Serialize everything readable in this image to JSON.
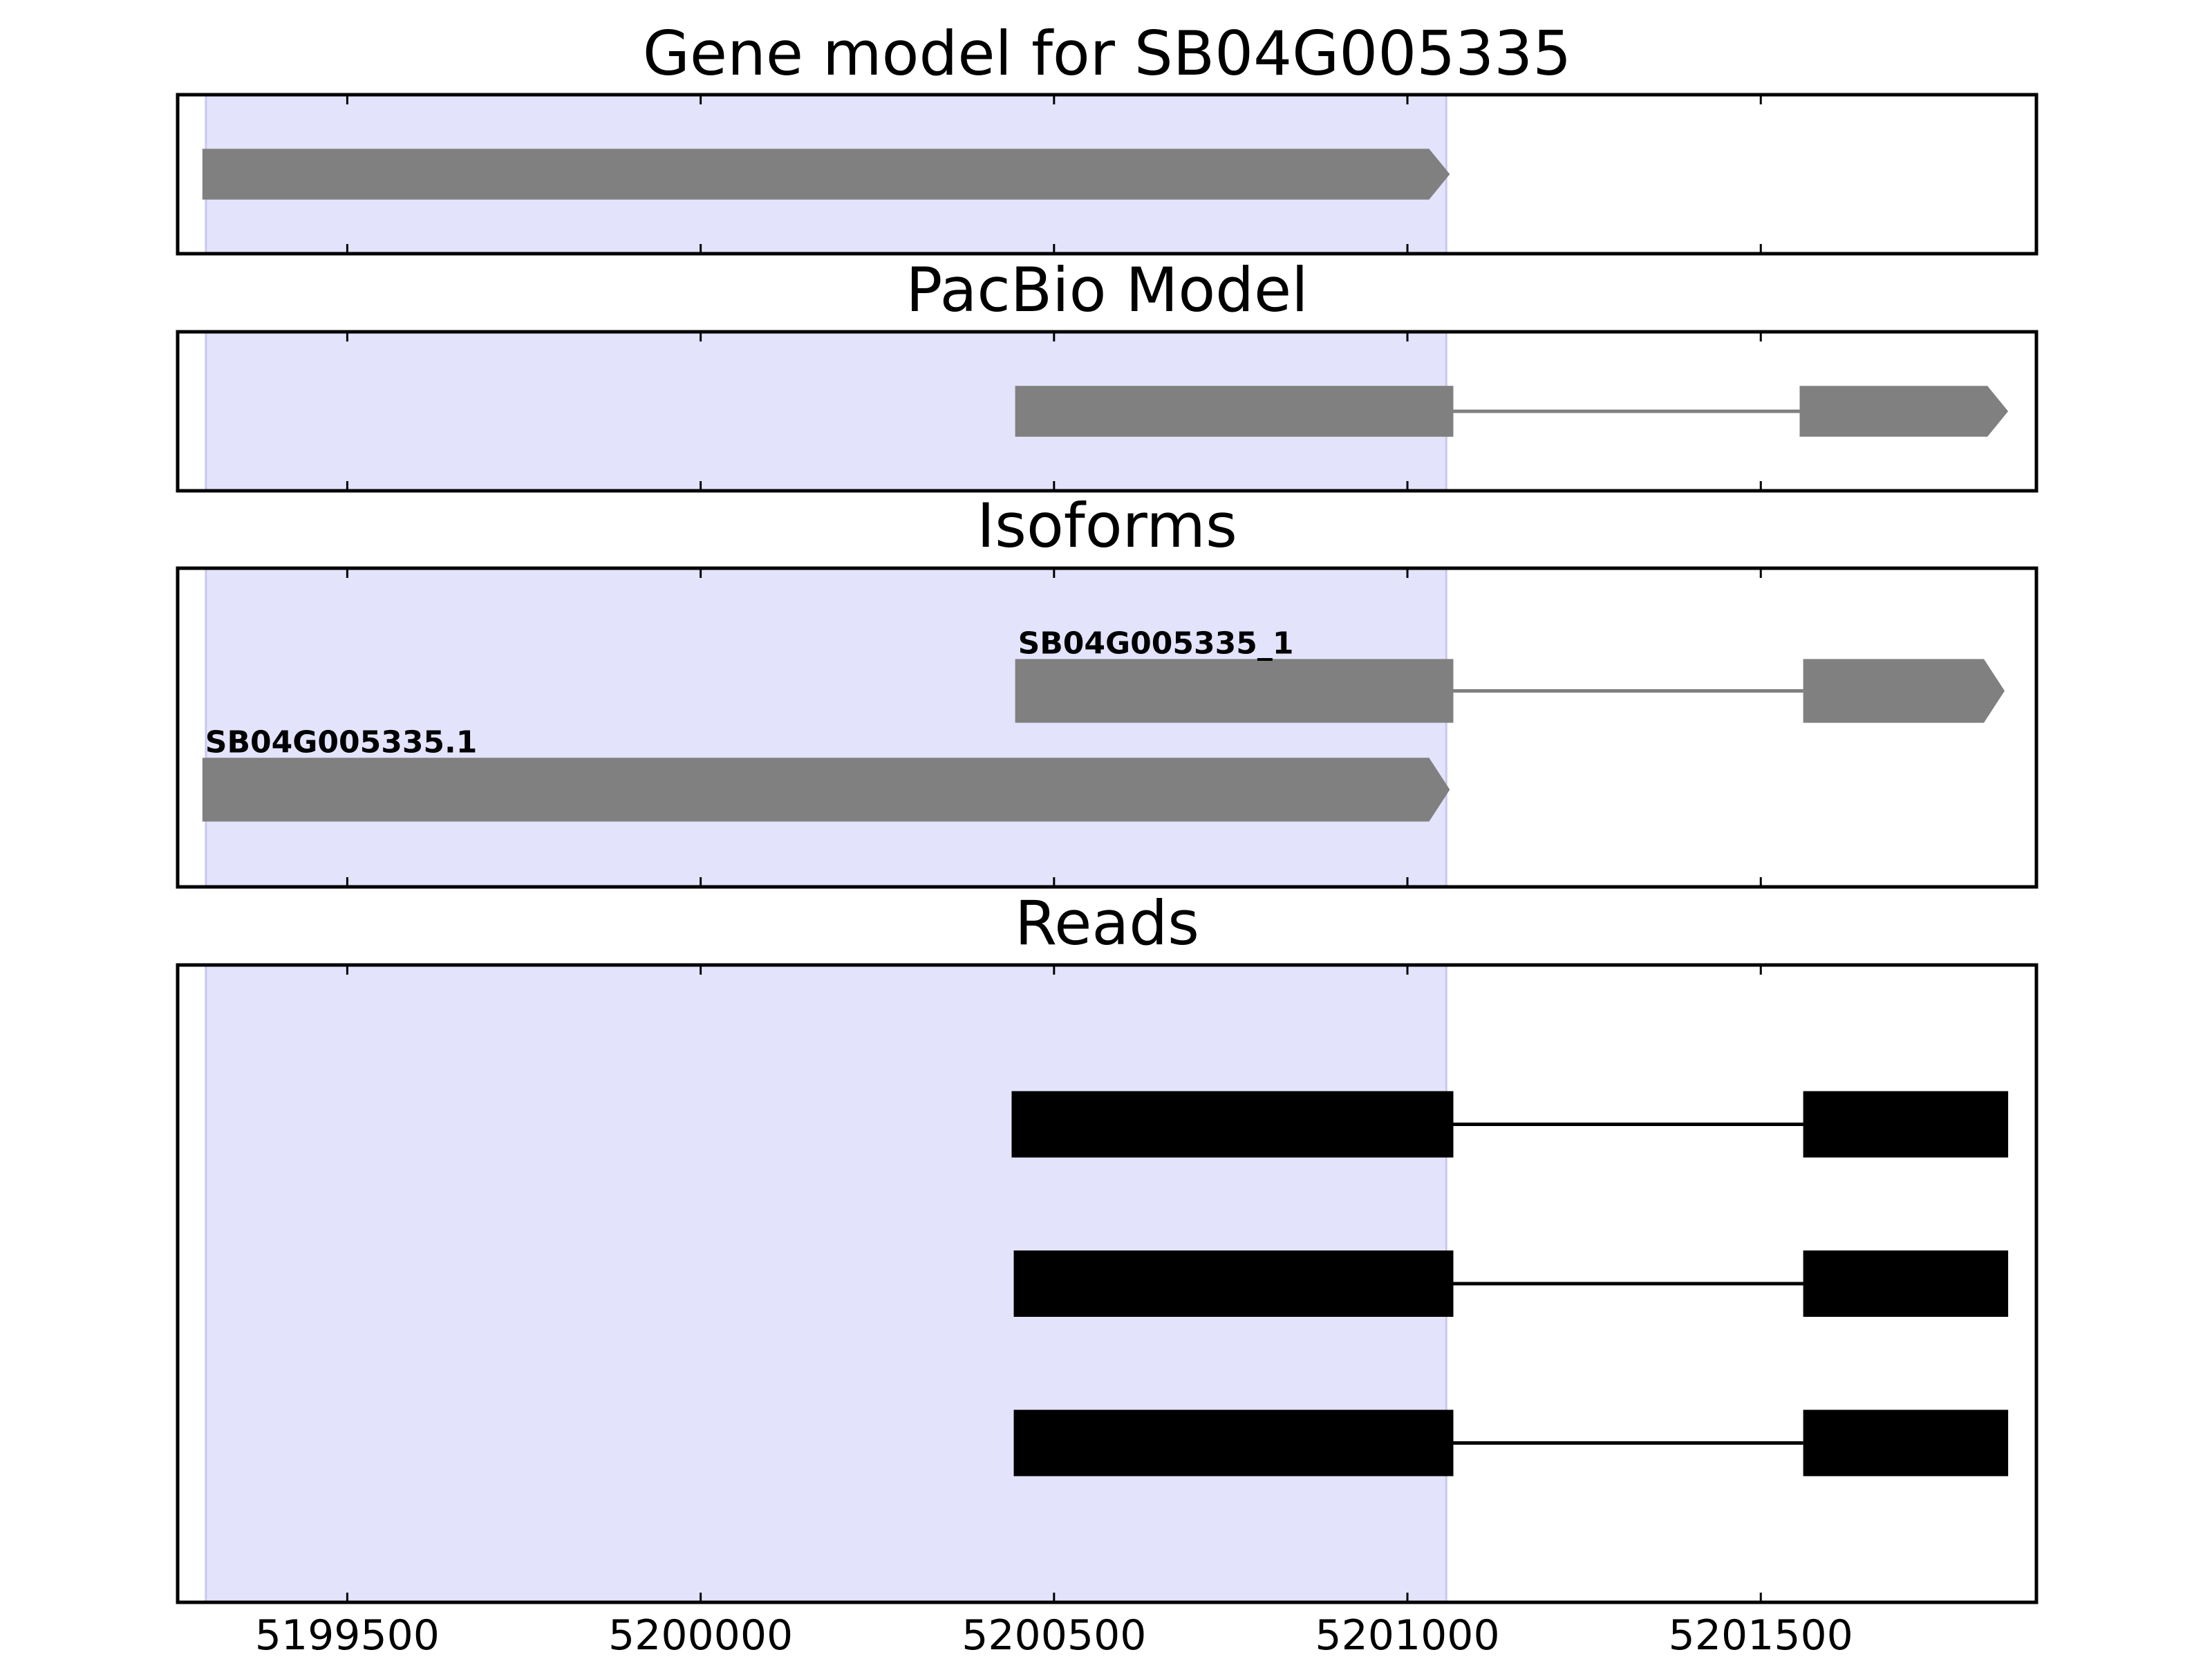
{
  "chart_data": {
    "type": "gene-track",
    "xlim": [
      5199260,
      5201890
    ],
    "x_ticks": [
      5199500,
      5200000,
      5200500,
      5201000,
      5201500
    ],
    "x_tick_labels": [
      "5199500",
      "5200000",
      "5200500",
      "5201000",
      "5201500"
    ],
    "highlight_region": {
      "start": 5199300,
      "end": 5201055,
      "color": "#e3e3fc"
    },
    "feature_color": "#808080",
    "read_color": "#000000",
    "panels": [
      {
        "id": "gene-model",
        "title": "Gene model for SB04G005335",
        "ylim": [
          0,
          1
        ],
        "tracks": [
          {
            "label": "",
            "y": 0.5,
            "height": 0.32,
            "strand": "+",
            "exons": [
              [
                5199295,
                5201060
              ]
            ]
          }
        ]
      },
      {
        "id": "pacbio-model",
        "title": "PacBio Model",
        "ylim": [
          0,
          1
        ],
        "tracks": [
          {
            "label": "",
            "y": 0.5,
            "height": 0.32,
            "strand": "+",
            "exons": [
              [
                5200445,
                5201065
              ],
              [
                5201555,
                5201850
              ]
            ]
          }
        ]
      },
      {
        "id": "isoforms",
        "title": "Isoforms",
        "ylim": [
          0,
          1
        ],
        "tracks": [
          {
            "label": "SB04G005335_1",
            "y": 0.615,
            "height": 0.2,
            "strand": "+",
            "exons": [
              [
                5200445,
                5201065
              ],
              [
                5201560,
                5201845
              ]
            ]
          },
          {
            "label": "SB04G005335.1",
            "y": 0.305,
            "height": 0.2,
            "strand": "+",
            "exons": [
              [
                5199295,
                5201060
              ]
            ]
          }
        ]
      },
      {
        "id": "reads",
        "title": "Reads",
        "ylim": [
          0,
          4
        ],
        "reads": [
          {
            "y": 3.0,
            "exons": [
              [
                5200440,
                5201065
              ],
              [
                5201560,
                5201850
              ]
            ]
          },
          {
            "y": 2.0,
            "exons": [
              [
                5200443,
                5201065
              ],
              [
                5201560,
                5201850
              ]
            ]
          },
          {
            "y": 1.0,
            "exons": [
              [
                5200443,
                5201065
              ],
              [
                5201560,
                5201850
              ]
            ]
          }
        ]
      }
    ]
  }
}
